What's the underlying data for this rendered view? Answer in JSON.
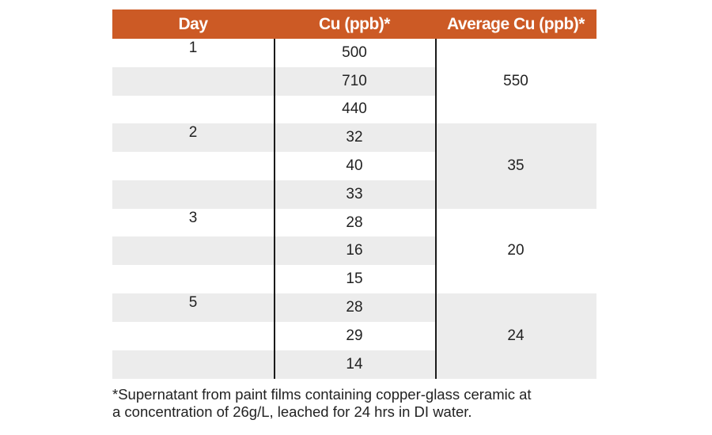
{
  "table": {
    "headers": {
      "day": "Day",
      "cu": "Cu (ppb)*",
      "avg": "Average Cu (ppb)*"
    },
    "groups": [
      {
        "day": "1",
        "values": [
          "500",
          "710",
          "440"
        ],
        "average": "550"
      },
      {
        "day": "2",
        "values": [
          "32",
          "40",
          "33"
        ],
        "average": "35"
      },
      {
        "day": "3",
        "values": [
          "28",
          "16",
          "15"
        ],
        "average": "20"
      },
      {
        "day": "5",
        "values": [
          "28",
          "29",
          "14"
        ],
        "average": "24"
      }
    ],
    "colors": {
      "header_bg": "#cc5a25",
      "header_text": "#ffffff",
      "stripe": "#ececec"
    }
  },
  "footnote": {
    "line1": "*Supernatant from paint films containing copper-glass ceramic at",
    "line2": "a concentration of 26g/L, leached for 24 hrs in DI water."
  }
}
